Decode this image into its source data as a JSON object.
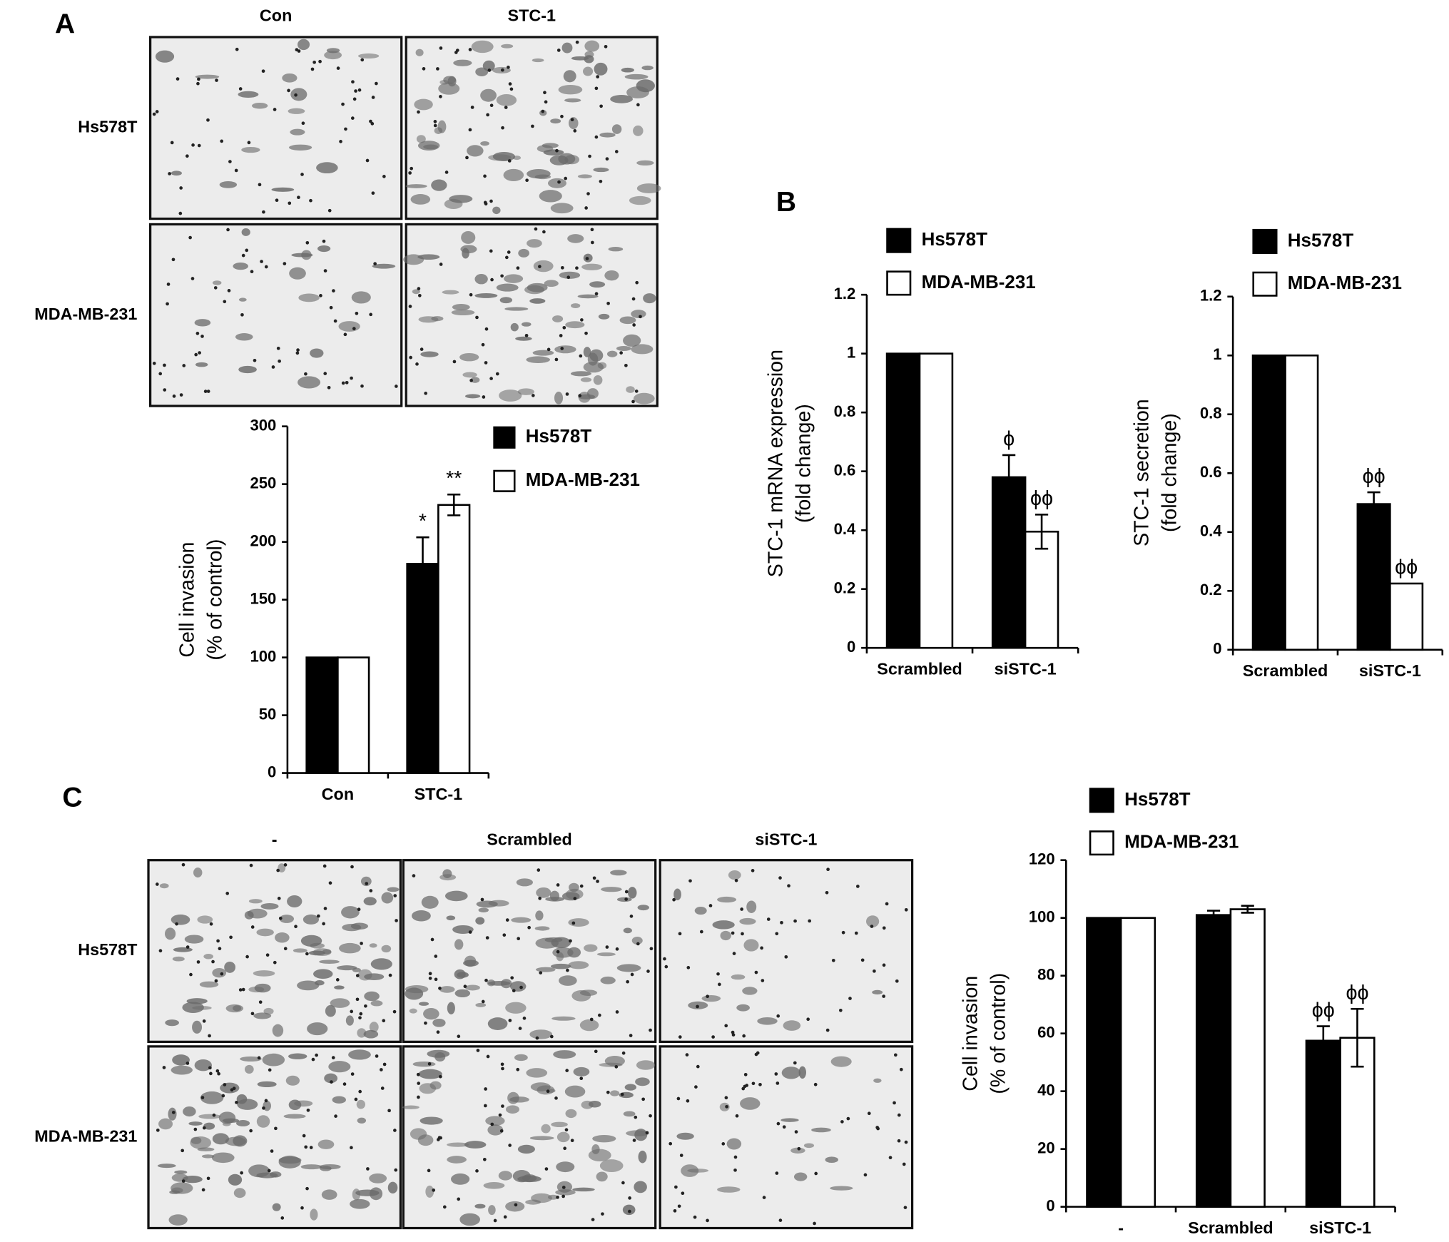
{
  "figure": {
    "panel_labels": [
      "A",
      "B",
      "C"
    ],
    "panel_a": {
      "columns": [
        "Con",
        "STC-1"
      ],
      "rows": [
        "Hs578T",
        "MDA-MB-231"
      ]
    },
    "panel_c": {
      "columns": [
        "-",
        "Scrambled",
        "siSTC-1"
      ],
      "rows": [
        "Hs578T",
        "MDA-MB-231"
      ]
    }
  },
  "chart_data": [
    {
      "type": "bar",
      "categories": [
        "Con",
        "STC-1"
      ],
      "y_label": [
        "Cell invasion",
        "(% of control)"
      ],
      "ylim": [
        0,
        300
      ],
      "yticks": [
        0,
        50,
        100,
        150,
        200,
        250,
        300
      ],
      "series": [
        {
          "name": "Hs578T",
          "color": "#000000",
          "values": [
            100,
            181
          ],
          "errors": [
            null,
            23
          ],
          "significance": [
            null,
            "*"
          ]
        },
        {
          "name": "MDA-MB-231",
          "color": "#ffffff",
          "values": [
            100,
            232
          ],
          "errors": [
            null,
            9
          ],
          "significance": [
            null,
            "**"
          ]
        }
      ]
    },
    {
      "type": "bar",
      "categories": [
        "Scrambled",
        "siSTC-1"
      ],
      "y_label": [
        "STC-1 mRNA expression",
        "(fold change)"
      ],
      "ylim": [
        0,
        1.2
      ],
      "yticks": [
        0,
        0.2,
        0.4,
        0.6,
        0.8,
        1,
        1.2
      ],
      "series": [
        {
          "name": "Hs578T",
          "color": "#000000",
          "values": [
            1,
            0.58
          ],
          "errors": [
            null,
            0.075
          ],
          "significance": [
            null,
            "ϕ"
          ]
        },
        {
          "name": "MDA-MB-231",
          "color": "#ffffff",
          "values": [
            1,
            0.395
          ],
          "errors": [
            null,
            0.058
          ],
          "significance": [
            null,
            "ϕϕ"
          ]
        }
      ]
    },
    {
      "type": "bar",
      "categories": [
        "Scrambled",
        "siSTC-1"
      ],
      "y_label": [
        "STC-1 secretion",
        "(fold change)"
      ],
      "ylim": [
        0,
        1.2
      ],
      "yticks": [
        0,
        0.2,
        0.4,
        0.6,
        0.8,
        1,
        1.2
      ],
      "series": [
        {
          "name": "Hs578T",
          "color": "#000000",
          "values": [
            1,
            0.495
          ],
          "errors": [
            null,
            0.04
          ],
          "significance": [
            null,
            "ϕϕ"
          ]
        },
        {
          "name": "MDA-MB-231",
          "color": "#ffffff",
          "values": [
            1,
            0.225
          ],
          "errors": [
            null,
            null
          ],
          "significance": [
            null,
            "ϕϕ"
          ]
        }
      ]
    },
    {
      "type": "bar",
      "categories": [
        "-",
        "Scrambled",
        "siSTC-1"
      ],
      "y_label": [
        "Cell invasion",
        "(% of control)"
      ],
      "ylim": [
        0,
        120
      ],
      "yticks": [
        0,
        20,
        40,
        60,
        80,
        100,
        120
      ],
      "series": [
        {
          "name": "Hs578T",
          "color": "#000000",
          "values": [
            100,
            101,
            57.5
          ],
          "errors": [
            null,
            1.5,
            5
          ],
          "significance": [
            null,
            null,
            "ϕϕ"
          ]
        },
        {
          "name": "MDA-MB-231",
          "color": "#ffffff",
          "values": [
            100,
            103,
            58.5
          ],
          "errors": [
            null,
            1.2,
            10
          ],
          "significance": [
            null,
            null,
            "ϕϕ"
          ]
        }
      ]
    }
  ]
}
